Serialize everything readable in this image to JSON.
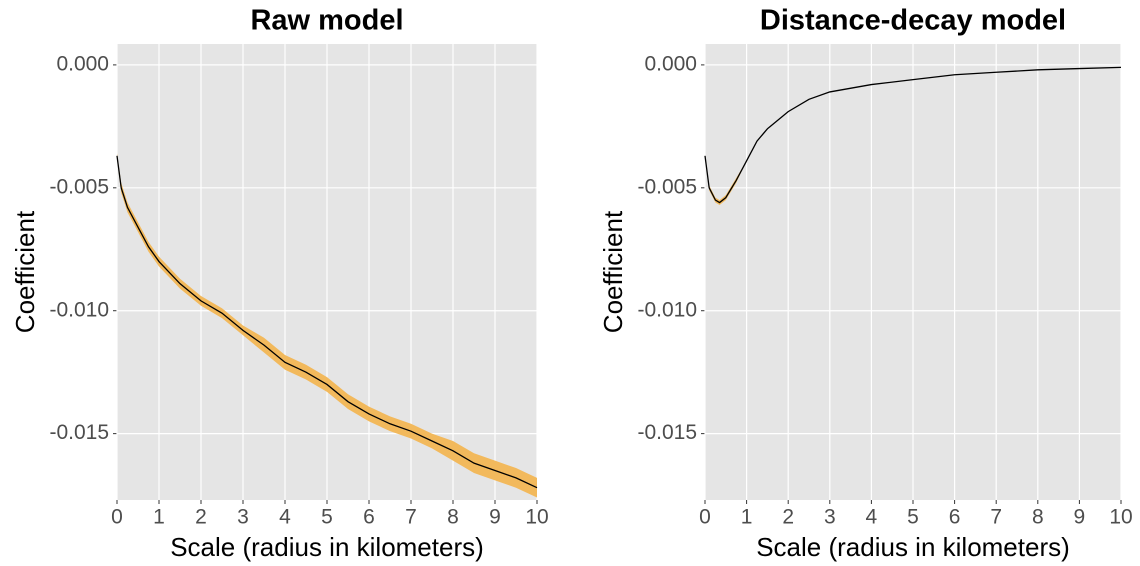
{
  "chart_data": [
    {
      "type": "line",
      "title": "Raw model",
      "xlabel": "Scale (radius in kilometers)",
      "ylabel": "Coefficient",
      "x": [
        0,
        0.1,
        0.25,
        0.5,
        0.75,
        1,
        1.5,
        2,
        2.5,
        3,
        3.5,
        4,
        4.5,
        5,
        5.5,
        6,
        6.5,
        7,
        7.5,
        8,
        8.5,
        9,
        9.5,
        10
      ],
      "values": [
        -0.0037,
        -0.005,
        -0.0058,
        -0.0066,
        -0.0074,
        -0.008,
        -0.0089,
        -0.0096,
        -0.0101,
        -0.0108,
        -0.0114,
        -0.0121,
        -0.0125,
        -0.013,
        -0.0137,
        -0.0142,
        -0.0146,
        -0.0149,
        -0.0153,
        -0.0157,
        -0.0162,
        -0.0165,
        -0.0168,
        -0.0172
      ],
      "lower": [
        -0.0038,
        -0.0052,
        -0.006,
        -0.0068,
        -0.0076,
        -0.0082,
        -0.0091,
        -0.0098,
        -0.0103,
        -0.011,
        -0.0117,
        -0.0124,
        -0.0128,
        -0.0133,
        -0.014,
        -0.0145,
        -0.0149,
        -0.0152,
        -0.0156,
        -0.0161,
        -0.0166,
        -0.0169,
        -0.0172,
        -0.0176
      ],
      "upper": [
        -0.0036,
        -0.0048,
        -0.0056,
        -0.0064,
        -0.0072,
        -0.0078,
        -0.0087,
        -0.0094,
        -0.0099,
        -0.0106,
        -0.0111,
        -0.0118,
        -0.0122,
        -0.0127,
        -0.0134,
        -0.0139,
        -0.0143,
        -0.0146,
        -0.015,
        -0.0153,
        -0.0158,
        -0.0161,
        -0.0164,
        -0.0168
      ],
      "color": "#000000",
      "band_color": "#f2b95c",
      "xlim": [
        0,
        10
      ],
      "xticks": [
        0,
        1,
        2,
        3,
        4,
        5,
        6,
        7,
        8,
        9,
        10
      ],
      "ylim": [
        -0.0177,
        0.00085
      ],
      "yticks": [
        {
          "value": -0.015,
          "label": "-0.015"
        },
        {
          "value": -0.01,
          "label": "-0.010"
        },
        {
          "value": -0.005,
          "label": "-0.005"
        },
        {
          "value": 0,
          "label": "0.000"
        }
      ],
      "grid": true
    },
    {
      "type": "line",
      "title": "Distance-decay model",
      "xlabel": "Scale (radius in kilometers)",
      "ylabel": "Coefficient",
      "x": [
        0,
        0.1,
        0.25,
        0.35,
        0.5,
        0.75,
        1,
        1.25,
        1.5,
        2,
        2.5,
        3,
        4,
        5,
        6,
        7,
        8,
        9,
        10
      ],
      "values": [
        -0.0037,
        -0.005,
        -0.0055,
        -0.0056,
        -0.0054,
        -0.0047,
        -0.0039,
        -0.0031,
        -0.0026,
        -0.0019,
        -0.0014,
        -0.0011,
        -0.0008,
        -0.0006,
        -0.0004,
        -0.0003,
        -0.0002,
        -0.00015,
        -0.0001
      ],
      "lower": [
        -0.0037,
        -0.0051,
        -0.0056,
        -0.0057,
        -0.0055,
        -0.0048,
        -0.0039,
        -0.0031,
        -0.0026,
        -0.0019,
        -0.0014,
        -0.0011,
        -0.0008,
        -0.0006,
        -0.0004,
        -0.0003,
        -0.0002,
        -0.00015,
        -0.0001
      ],
      "upper": [
        -0.0037,
        -0.0049,
        -0.0054,
        -0.0055,
        -0.0053,
        -0.0046,
        -0.0039,
        -0.0031,
        -0.0026,
        -0.0019,
        -0.0014,
        -0.0011,
        -0.0008,
        -0.0006,
        -0.0004,
        -0.0003,
        -0.0002,
        -0.00015,
        -0.0001
      ],
      "color": "#000000",
      "band_color": "#f2b95c",
      "xlim": [
        0,
        10
      ],
      "xticks": [
        0,
        1,
        2,
        3,
        4,
        5,
        6,
        7,
        8,
        9,
        10
      ],
      "ylim": [
        -0.0177,
        0.00085
      ],
      "yticks": [
        {
          "value": -0.015,
          "label": "-0.015"
        },
        {
          "value": -0.01,
          "label": "-0.010"
        },
        {
          "value": -0.005,
          "label": "-0.005"
        },
        {
          "value": 0,
          "label": "0.000"
        }
      ],
      "grid": true
    }
  ]
}
